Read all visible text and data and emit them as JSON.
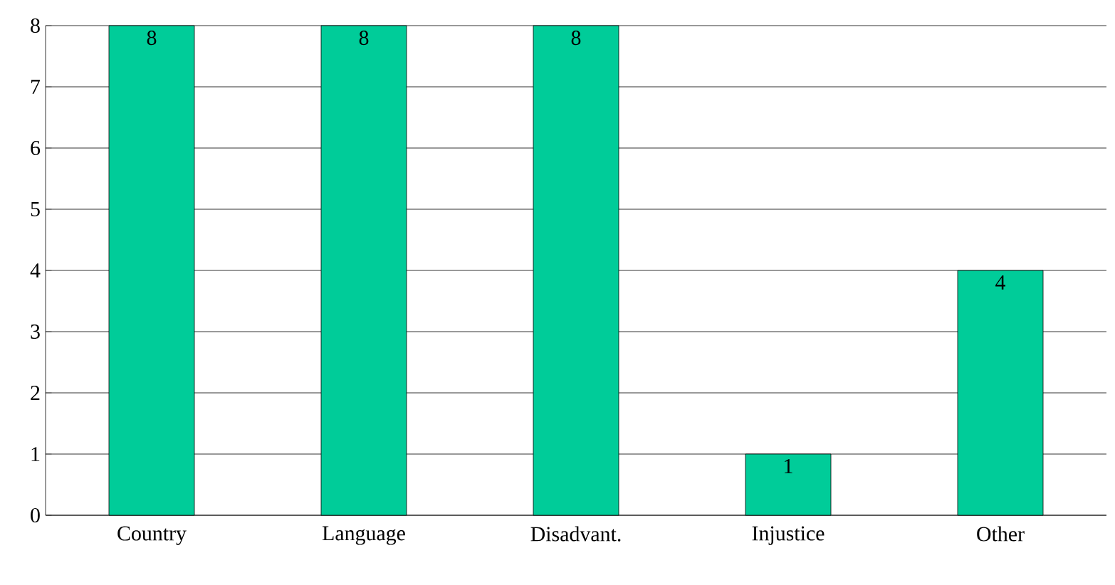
{
  "chart_data": {
    "type": "bar",
    "categories": [
      "Country",
      "Language",
      "Disadvant.",
      "Injustice",
      "Other"
    ],
    "values": [
      8,
      8,
      8,
      1,
      4
    ],
    "color": "#00cc99",
    "ylim": [
      0,
      8
    ],
    "yticks": [
      0,
      1,
      2,
      3,
      4,
      5,
      6,
      7,
      8
    ],
    "grid": "y",
    "data_labels": true
  }
}
